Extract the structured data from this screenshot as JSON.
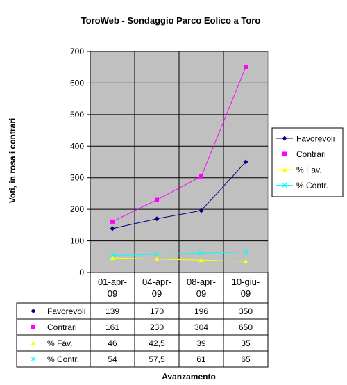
{
  "chart_data": {
    "type": "line",
    "title": "ToroWeb - Sondaggio Parco Eolico a Toro",
    "xlabel": "Avanzamento",
    "ylabel": "Voti, in rosa i contrari",
    "ylim": [
      0,
      700
    ],
    "ytick_step": 100,
    "grid": true,
    "legend_position": "right",
    "has_data_table": true,
    "categories": [
      [
        "01-apr-",
        "09"
      ],
      [
        "04-apr-",
        "09"
      ],
      [
        "08-apr-",
        "09"
      ],
      [
        "10-giu-",
        "09"
      ]
    ],
    "series": [
      {
        "name": "Favorevoli",
        "values": [
          139,
          170,
          196,
          350
        ],
        "labels": [
          "139",
          "170",
          "196",
          "350"
        ],
        "color": "#000080",
        "marker": "diamond"
      },
      {
        "name": "Contrari",
        "values": [
          161,
          230,
          304,
          650
        ],
        "labels": [
          "161",
          "230",
          "304",
          "650"
        ],
        "color": "#FF00FF",
        "marker": "square"
      },
      {
        "name": "% Fav.",
        "values": [
          46,
          42.5,
          39,
          35
        ],
        "labels": [
          "46",
          "42,5",
          "39",
          "35"
        ],
        "color": "#FFFF00",
        "marker": "triangle"
      },
      {
        "name": "% Contr.",
        "values": [
          54,
          57.5,
          61,
          65
        ],
        "labels": [
          "54",
          "57,5",
          "61",
          "65"
        ],
        "color": "#00FFFF",
        "marker": "x"
      }
    ],
    "plot_background": "#C0C0C0",
    "gridline_color": "#000000"
  }
}
